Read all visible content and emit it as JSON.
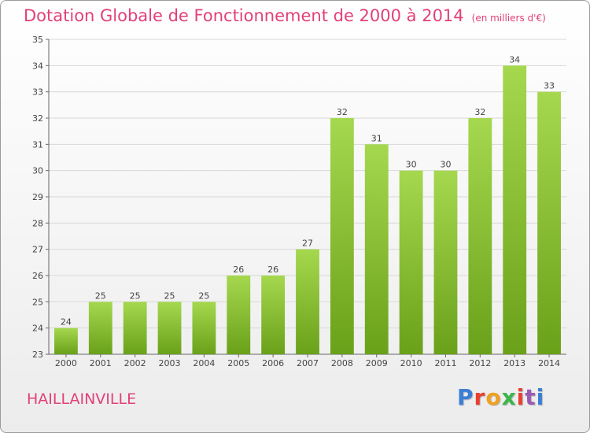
{
  "header": {
    "title": "Dotation Globale de Fonctionnement de 2000 à 2014",
    "subtitle": "(en milliers d'€)"
  },
  "commune": "HAILLAINVILLE",
  "logo": {
    "text": "Proxiti",
    "letter_colors": [
      "#3a7fd5",
      "#e8402f",
      "#f0a020",
      "#3cb54a",
      "#e8402f",
      "#9b59b6",
      "#3a7fd5"
    ]
  },
  "colors": {
    "title": "#e2407a",
    "bar_light": "#a5d84e",
    "bar_dark": "#6aa11a",
    "grid": "#d8d8d8"
  },
  "chart_data": {
    "type": "bar",
    "categories": [
      "2000",
      "2001",
      "2002",
      "2003",
      "2004",
      "2005",
      "2006",
      "2007",
      "2008",
      "2009",
      "2010",
      "2011",
      "2012",
      "2013",
      "2014"
    ],
    "values": [
      24,
      25,
      25,
      25,
      25,
      26,
      26,
      27,
      32,
      31,
      30,
      30,
      32,
      34,
      33
    ],
    "ylim": [
      23,
      35
    ],
    "yticks": [
      23,
      24,
      25,
      26,
      27,
      28,
      29,
      30,
      31,
      32,
      33,
      34,
      35
    ],
    "grid": true,
    "title": "Dotation Globale de Fonctionnement de 2000 à 2014",
    "xlabel": "",
    "ylabel": ""
  }
}
